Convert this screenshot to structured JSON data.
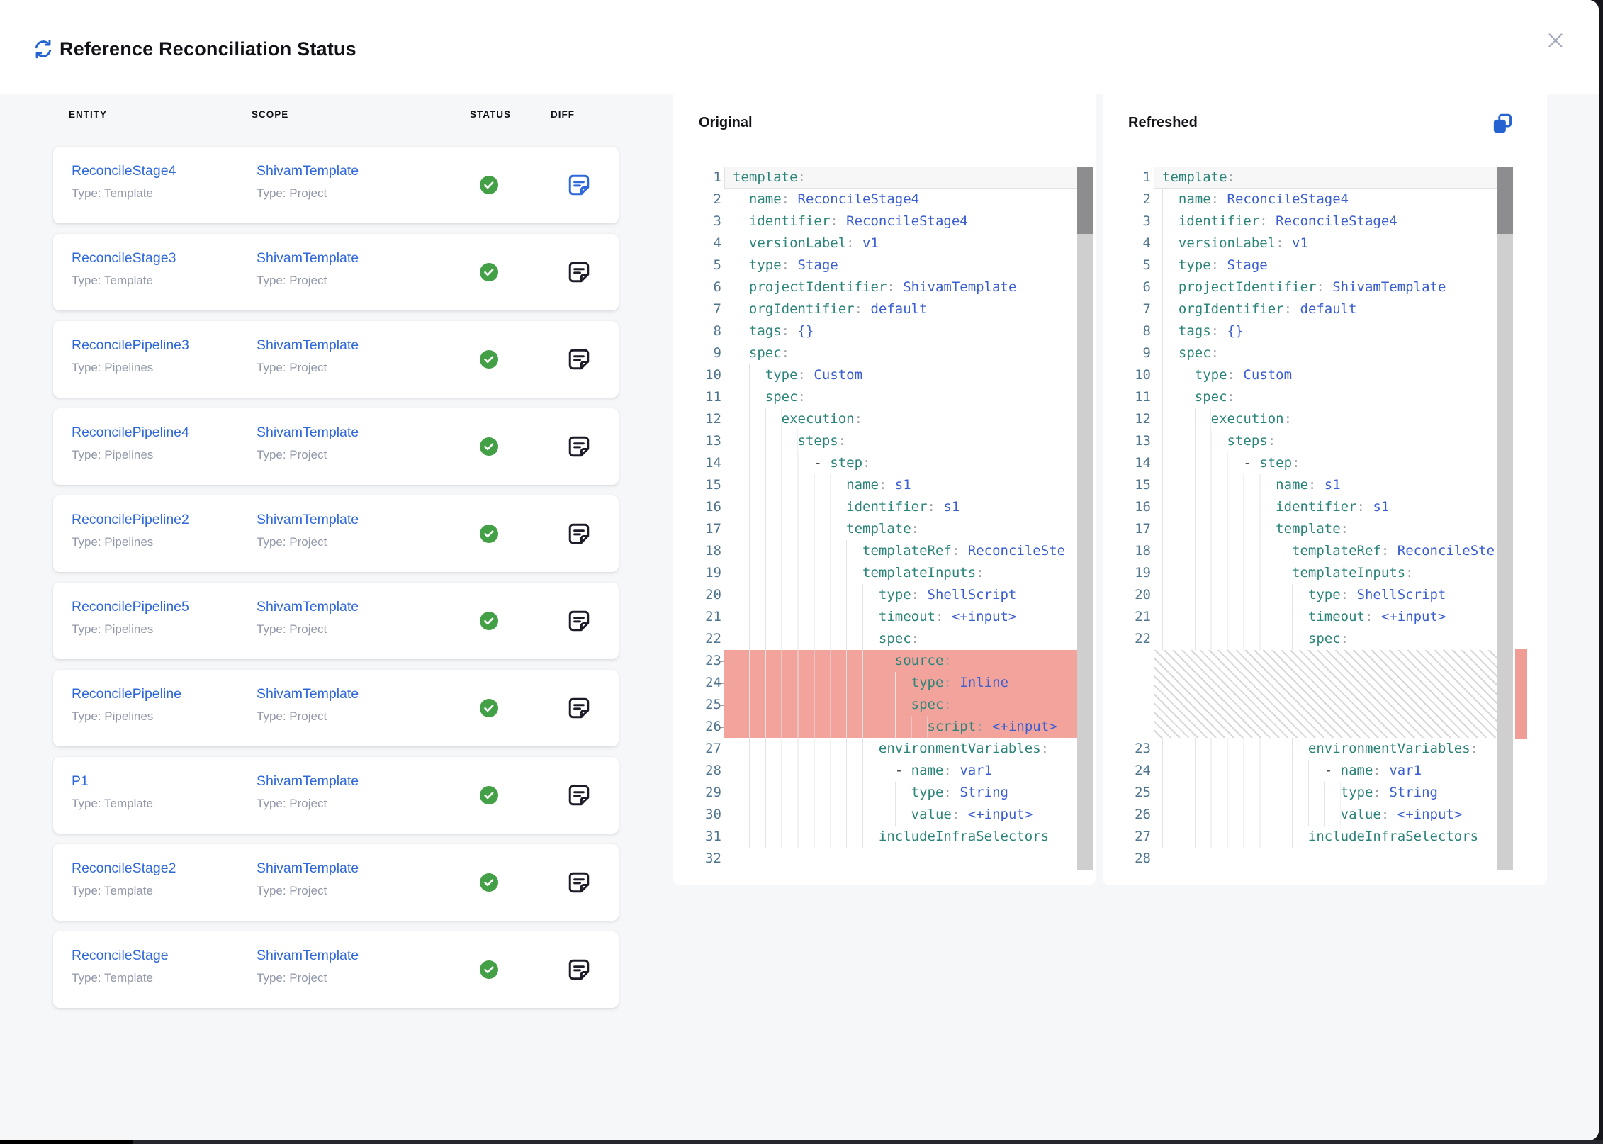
{
  "dialog": {
    "title": "Reference Reconciliation Status",
    "icons": {
      "header": "refresh-icon",
      "close": "close-icon",
      "copy": "copy-icon",
      "status_ok": "check-circle-icon",
      "diff": "diff-note-icon"
    },
    "colors": {
      "accent_blue": "#2f68d9",
      "link_blue": "#2f68d9",
      "success_green": "#43a047",
      "removed_red": "#f2a49c",
      "key_teal": "#2b8479",
      "value_blue": "#3a5ed0",
      "line_number": "#50758f"
    }
  },
  "table": {
    "columns": [
      "ENTITY",
      "SCOPE",
      "STATUS",
      "DIFF"
    ],
    "rows": [
      {
        "entity": "ReconcileStage4",
        "entity_type": "Type: Template",
        "scope": "ShivamTemplate",
        "scope_type": "Type: Project",
        "status": "success",
        "selected": true
      },
      {
        "entity": "ReconcileStage3",
        "entity_type": "Type: Template",
        "scope": "ShivamTemplate",
        "scope_type": "Type: Project",
        "status": "success",
        "selected": false
      },
      {
        "entity": "ReconcilePipeline3",
        "entity_type": "Type: Pipelines",
        "scope": "ShivamTemplate",
        "scope_type": "Type: Project",
        "status": "success",
        "selected": false
      },
      {
        "entity": "ReconcilePipeline4",
        "entity_type": "Type: Pipelines",
        "scope": "ShivamTemplate",
        "scope_type": "Type: Project",
        "status": "success",
        "selected": false
      },
      {
        "entity": "ReconcilePipeline2",
        "entity_type": "Type: Pipelines",
        "scope": "ShivamTemplate",
        "scope_type": "Type: Project",
        "status": "success",
        "selected": false
      },
      {
        "entity": "ReconcilePipeline5",
        "entity_type": "Type: Pipelines",
        "scope": "ShivamTemplate",
        "scope_type": "Type: Project",
        "status": "success",
        "selected": false
      },
      {
        "entity": "ReconcilePipeline",
        "entity_type": "Type: Pipelines",
        "scope": "ShivamTemplate",
        "scope_type": "Type: Project",
        "status": "success",
        "selected": false
      },
      {
        "entity": "P1",
        "entity_type": "Type: Template",
        "scope": "ShivamTemplate",
        "scope_type": "Type: Project",
        "status": "success",
        "selected": false
      },
      {
        "entity": "ReconcileStage2",
        "entity_type": "Type: Template",
        "scope": "ShivamTemplate",
        "scope_type": "Type: Project",
        "status": "success",
        "selected": false
      },
      {
        "entity": "ReconcileStage",
        "entity_type": "Type: Template",
        "scope": "ShivamTemplate",
        "scope_type": "Type: Project",
        "status": "success",
        "selected": false
      }
    ]
  },
  "diff": {
    "original": {
      "title": "Original",
      "lines": [
        {
          "n": 1,
          "indent": 0,
          "cur": true,
          "tokens": [
            [
              "k",
              "template"
            ],
            [
              "p",
              ":"
            ]
          ]
        },
        {
          "n": 2,
          "indent": 2,
          "tokens": [
            [
              "k",
              "name"
            ],
            [
              "p",
              ": "
            ],
            [
              "v",
              "ReconcileStage4"
            ]
          ]
        },
        {
          "n": 3,
          "indent": 2,
          "tokens": [
            [
              "k",
              "identifier"
            ],
            [
              "p",
              ": "
            ],
            [
              "v",
              "ReconcileStage4"
            ]
          ]
        },
        {
          "n": 4,
          "indent": 2,
          "tokens": [
            [
              "k",
              "versionLabel"
            ],
            [
              "p",
              ": "
            ],
            [
              "v",
              "v1"
            ]
          ]
        },
        {
          "n": 5,
          "indent": 2,
          "tokens": [
            [
              "k",
              "type"
            ],
            [
              "p",
              ": "
            ],
            [
              "v",
              "Stage"
            ]
          ]
        },
        {
          "n": 6,
          "indent": 2,
          "tokens": [
            [
              "k",
              "projectIdentifier"
            ],
            [
              "p",
              ": "
            ],
            [
              "v",
              "ShivamTemplate"
            ]
          ]
        },
        {
          "n": 7,
          "indent": 2,
          "tokens": [
            [
              "k",
              "orgIdentifier"
            ],
            [
              "p",
              ": "
            ],
            [
              "v",
              "default"
            ]
          ]
        },
        {
          "n": 8,
          "indent": 2,
          "tokens": [
            [
              "k",
              "tags"
            ],
            [
              "p",
              ": "
            ],
            [
              "v",
              "{}"
            ]
          ]
        },
        {
          "n": 9,
          "indent": 2,
          "tokens": [
            [
              "k",
              "spec"
            ],
            [
              "p",
              ":"
            ]
          ]
        },
        {
          "n": 10,
          "indent": 4,
          "tokens": [
            [
              "k",
              "type"
            ],
            [
              "p",
              ": "
            ],
            [
              "v",
              "Custom"
            ]
          ]
        },
        {
          "n": 11,
          "indent": 4,
          "tokens": [
            [
              "k",
              "spec"
            ],
            [
              "p",
              ":"
            ]
          ]
        },
        {
          "n": 12,
          "indent": 6,
          "tokens": [
            [
              "k",
              "execution"
            ],
            [
              "p",
              ":"
            ]
          ]
        },
        {
          "n": 13,
          "indent": 8,
          "tokens": [
            [
              "k",
              "steps"
            ],
            [
              "p",
              ":"
            ]
          ]
        },
        {
          "n": 14,
          "indent": 10,
          "tokens": [
            [
              "d",
              "- "
            ],
            [
              "k",
              "step"
            ],
            [
              "p",
              ":"
            ]
          ]
        },
        {
          "n": 15,
          "indent": 14,
          "tokens": [
            [
              "k",
              "name"
            ],
            [
              "p",
              ": "
            ],
            [
              "v",
              "s1"
            ]
          ]
        },
        {
          "n": 16,
          "indent": 14,
          "tokens": [
            [
              "k",
              "identifier"
            ],
            [
              "p",
              ": "
            ],
            [
              "v",
              "s1"
            ]
          ]
        },
        {
          "n": 17,
          "indent": 14,
          "tokens": [
            [
              "k",
              "template"
            ],
            [
              "p",
              ":"
            ]
          ]
        },
        {
          "n": 18,
          "indent": 16,
          "tokens": [
            [
              "k",
              "templateRef"
            ],
            [
              "p",
              ": "
            ],
            [
              "v",
              "ReconcileSte"
            ]
          ]
        },
        {
          "n": 19,
          "indent": 16,
          "tokens": [
            [
              "k",
              "templateInputs"
            ],
            [
              "p",
              ":"
            ]
          ]
        },
        {
          "n": 20,
          "indent": 18,
          "tokens": [
            [
              "k",
              "type"
            ],
            [
              "p",
              ": "
            ],
            [
              "v",
              "ShellScript"
            ]
          ]
        },
        {
          "n": 21,
          "indent": 18,
          "tokens": [
            [
              "k",
              "timeout"
            ],
            [
              "p",
              ": "
            ],
            [
              "v",
              "<+input>"
            ]
          ]
        },
        {
          "n": 22,
          "indent": 18,
          "tokens": [
            [
              "k",
              "spec"
            ],
            [
              "p",
              ":"
            ]
          ]
        },
        {
          "n": 23,
          "indent": 20,
          "removed": true,
          "tokens": [
            [
              "k",
              "source"
            ],
            [
              "p",
              ":"
            ]
          ]
        },
        {
          "n": 24,
          "indent": 22,
          "removed": true,
          "tokens": [
            [
              "k",
              "type"
            ],
            [
              "p",
              ": "
            ],
            [
              "v",
              "Inline"
            ]
          ]
        },
        {
          "n": 25,
          "indent": 22,
          "removed": true,
          "tokens": [
            [
              "k",
              "spec"
            ],
            [
              "p",
              ":"
            ]
          ]
        },
        {
          "n": 26,
          "indent": 24,
          "removed": true,
          "tokens": [
            [
              "k",
              "script"
            ],
            [
              "p",
              ": "
            ],
            [
              "v",
              "<+input>"
            ]
          ]
        },
        {
          "n": 27,
          "indent": 18,
          "tokens": [
            [
              "k",
              "environmentVariables"
            ],
            [
              "p",
              ":"
            ]
          ]
        },
        {
          "n": 28,
          "indent": 20,
          "tokens": [
            [
              "d",
              "- "
            ],
            [
              "k",
              "name"
            ],
            [
              "p",
              ": "
            ],
            [
              "v",
              "var1"
            ]
          ]
        },
        {
          "n": 29,
          "indent": 22,
          "tokens": [
            [
              "k",
              "type"
            ],
            [
              "p",
              ": "
            ],
            [
              "v",
              "String"
            ]
          ]
        },
        {
          "n": 30,
          "indent": 22,
          "tokens": [
            [
              "k",
              "value"
            ],
            [
              "p",
              ": "
            ],
            [
              "v",
              "<+input>"
            ]
          ]
        },
        {
          "n": 31,
          "indent": 18,
          "tokens": [
            [
              "k",
              "includeInfraSelectors"
            ]
          ]
        },
        {
          "n": 32,
          "indent": 0,
          "tokens": []
        }
      ]
    },
    "refreshed": {
      "title": "Refreshed",
      "lines": [
        {
          "n": 1,
          "indent": 0,
          "cur": true,
          "tokens": [
            [
              "k",
              "template"
            ],
            [
              "p",
              ":"
            ]
          ]
        },
        {
          "n": 2,
          "indent": 2,
          "tokens": [
            [
              "k",
              "name"
            ],
            [
              "p",
              ": "
            ],
            [
              "v",
              "ReconcileStage4"
            ]
          ]
        },
        {
          "n": 3,
          "indent": 2,
          "tokens": [
            [
              "k",
              "identifier"
            ],
            [
              "p",
              ": "
            ],
            [
              "v",
              "ReconcileStage4"
            ]
          ]
        },
        {
          "n": 4,
          "indent": 2,
          "tokens": [
            [
              "k",
              "versionLabel"
            ],
            [
              "p",
              ": "
            ],
            [
              "v",
              "v1"
            ]
          ]
        },
        {
          "n": 5,
          "indent": 2,
          "tokens": [
            [
              "k",
              "type"
            ],
            [
              "p",
              ": "
            ],
            [
              "v",
              "Stage"
            ]
          ]
        },
        {
          "n": 6,
          "indent": 2,
          "tokens": [
            [
              "k",
              "projectIdentifier"
            ],
            [
              "p",
              ": "
            ],
            [
              "v",
              "ShivamTemplate"
            ]
          ]
        },
        {
          "n": 7,
          "indent": 2,
          "tokens": [
            [
              "k",
              "orgIdentifier"
            ],
            [
              "p",
              ": "
            ],
            [
              "v",
              "default"
            ]
          ]
        },
        {
          "n": 8,
          "indent": 2,
          "tokens": [
            [
              "k",
              "tags"
            ],
            [
              "p",
              ": "
            ],
            [
              "v",
              "{}"
            ]
          ]
        },
        {
          "n": 9,
          "indent": 2,
          "tokens": [
            [
              "k",
              "spec"
            ],
            [
              "p",
              ":"
            ]
          ]
        },
        {
          "n": 10,
          "indent": 4,
          "tokens": [
            [
              "k",
              "type"
            ],
            [
              "p",
              ": "
            ],
            [
              "v",
              "Custom"
            ]
          ]
        },
        {
          "n": 11,
          "indent": 4,
          "tokens": [
            [
              "k",
              "spec"
            ],
            [
              "p",
              ":"
            ]
          ]
        },
        {
          "n": 12,
          "indent": 6,
          "tokens": [
            [
              "k",
              "execution"
            ],
            [
              "p",
              ":"
            ]
          ]
        },
        {
          "n": 13,
          "indent": 8,
          "tokens": [
            [
              "k",
              "steps"
            ],
            [
              "p",
              ":"
            ]
          ]
        },
        {
          "n": 14,
          "indent": 10,
          "tokens": [
            [
              "d",
              "- "
            ],
            [
              "k",
              "step"
            ],
            [
              "p",
              ":"
            ]
          ]
        },
        {
          "n": 15,
          "indent": 14,
          "tokens": [
            [
              "k",
              "name"
            ],
            [
              "p",
              ": "
            ],
            [
              "v",
              "s1"
            ]
          ]
        },
        {
          "n": 16,
          "indent": 14,
          "tokens": [
            [
              "k",
              "identifier"
            ],
            [
              "p",
              ": "
            ],
            [
              "v",
              "s1"
            ]
          ]
        },
        {
          "n": 17,
          "indent": 14,
          "tokens": [
            [
              "k",
              "template"
            ],
            [
              "p",
              ":"
            ]
          ]
        },
        {
          "n": 18,
          "indent": 16,
          "tokens": [
            [
              "k",
              "templateRef"
            ],
            [
              "p",
              ": "
            ],
            [
              "v",
              "ReconcileSte"
            ]
          ]
        },
        {
          "n": 19,
          "indent": 16,
          "tokens": [
            [
              "k",
              "templateInputs"
            ],
            [
              "p",
              ":"
            ]
          ]
        },
        {
          "n": 20,
          "indent": 18,
          "tokens": [
            [
              "k",
              "type"
            ],
            [
              "p",
              ": "
            ],
            [
              "v",
              "ShellScript"
            ]
          ]
        },
        {
          "n": 21,
          "indent": 18,
          "tokens": [
            [
              "k",
              "timeout"
            ],
            [
              "p",
              ": "
            ],
            [
              "v",
              "<+input>"
            ]
          ]
        },
        {
          "n": 22,
          "indent": 18,
          "tokens": [
            [
              "k",
              "spec"
            ],
            [
              "p",
              ":"
            ]
          ]
        },
        {
          "hatch": 4
        },
        {
          "n": 23,
          "indent": 18,
          "tokens": [
            [
              "k",
              "environmentVariables"
            ],
            [
              "p",
              ":"
            ]
          ]
        },
        {
          "n": 24,
          "indent": 20,
          "tokens": [
            [
              "d",
              "- "
            ],
            [
              "k",
              "name"
            ],
            [
              "p",
              ": "
            ],
            [
              "v",
              "var1"
            ]
          ]
        },
        {
          "n": 25,
          "indent": 22,
          "tokens": [
            [
              "k",
              "type"
            ],
            [
              "p",
              ": "
            ],
            [
              "v",
              "String"
            ]
          ]
        },
        {
          "n": 26,
          "indent": 22,
          "tokens": [
            [
              "k",
              "value"
            ],
            [
              "p",
              ": "
            ],
            [
              "v",
              "<+input>"
            ]
          ]
        },
        {
          "n": 27,
          "indent": 18,
          "tokens": [
            [
              "k",
              "includeInfraSelectors"
            ]
          ]
        },
        {
          "n": 28,
          "indent": 0,
          "tokens": []
        }
      ]
    }
  }
}
